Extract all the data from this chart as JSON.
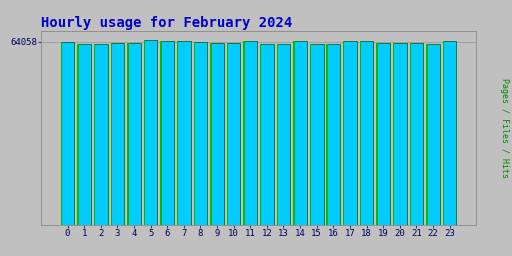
{
  "title": "Hourly usage for February 2024",
  "ylabel": "Pages / Files / Hits",
  "xlabel_values": [
    0,
    1,
    2,
    3,
    4,
    5,
    6,
    7,
    8,
    9,
    10,
    11,
    12,
    13,
    14,
    15,
    16,
    17,
    18,
    19,
    20,
    21,
    22,
    23
  ],
  "bar_values": [
    64058,
    63200,
    63350,
    63700,
    63800,
    64600,
    64350,
    64280,
    63900,
    63850,
    63820,
    64500,
    63480,
    63450,
    64450,
    63430,
    63350,
    64450,
    64480,
    63600,
    63580,
    63560,
    63450,
    64480
  ],
  "bar_color": "#00CCFF",
  "bar_edge_color": "#005500",
  "bar_edge_width": 0.5,
  "bg_color": "#C0C0C0",
  "plot_bg_color": "#C0C0C0",
  "title_color": "#0000CC",
  "ylabel_color": "#008800",
  "tick_label_color": "#000066",
  "ylim_min": 0,
  "ylim_max": 68000,
  "ytick_value": 64058,
  "ytick_label": "64058",
  "title_fontsize": 10,
  "ylabel_fontsize": 6,
  "tick_fontsize": 6.5
}
